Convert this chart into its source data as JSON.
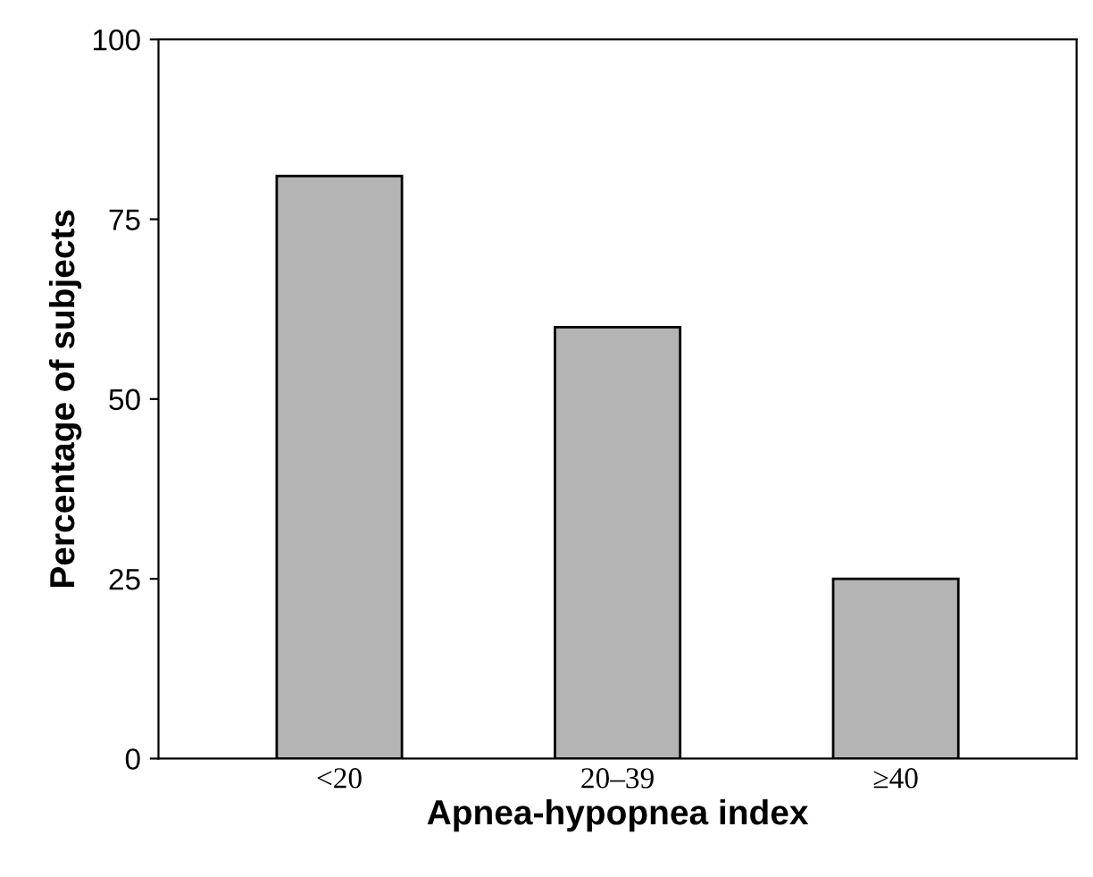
{
  "chart_data": {
    "type": "bar",
    "xlabel": "Apnea-hypopnea index",
    "ylabel": "Percentage of subjects",
    "categories": [
      "<20",
      "20–39",
      "≥40"
    ],
    "values": [
      81,
      60,
      25
    ],
    "color": "#b4b4b4",
    "ylim": [
      0,
      100
    ],
    "yticks": [
      0,
      25,
      50,
      75,
      100
    ],
    "grid": false
  }
}
